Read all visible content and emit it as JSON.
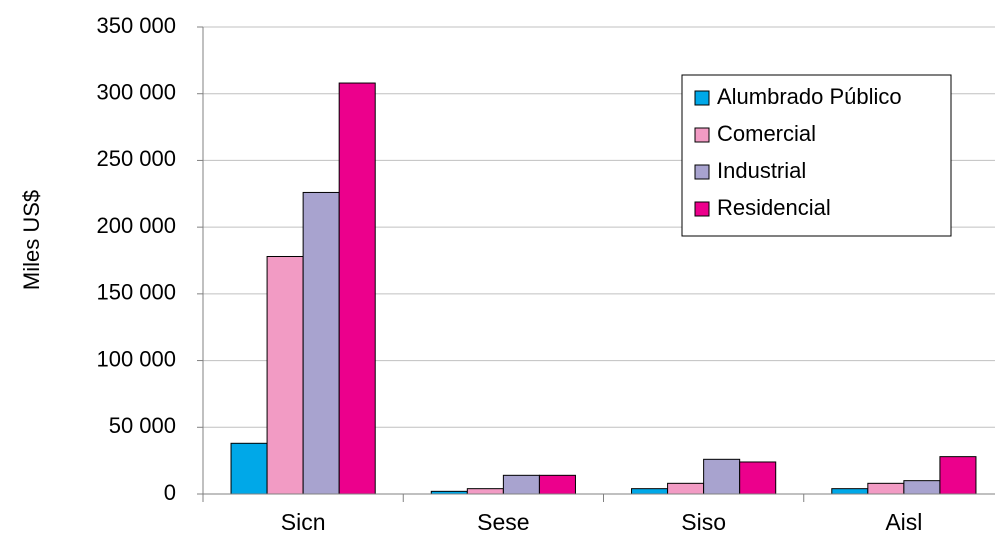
{
  "chart_data": {
    "type": "bar",
    "categories": [
      "Sicn",
      "Sese",
      "Siso",
      "Aisl"
    ],
    "series": [
      {
        "name": "Alumbrado Público",
        "color": "#00a8e8",
        "values": [
          38000,
          2000,
          4000,
          4000
        ]
      },
      {
        "name": "Comercial",
        "color": "#f29bc4",
        "values": [
          178000,
          4000,
          8000,
          8000
        ]
      },
      {
        "name": "Industrial",
        "color": "#a8a3cf",
        "values": [
          226000,
          14000,
          26000,
          10000
        ]
      },
      {
        "name": "Residencial",
        "color": "#ec008c",
        "values": [
          308000,
          14000,
          24000,
          28000
        ]
      }
    ],
    "xlabel": "",
    "ylabel": "Miles US$",
    "ylim": [
      0,
      350000
    ],
    "yticks": [
      "0",
      "50 000",
      "100 000",
      "150 000",
      "200 000",
      "250 000",
      "300 000",
      "350 000"
    ],
    "grid": true,
    "legend_position": "top-right"
  }
}
